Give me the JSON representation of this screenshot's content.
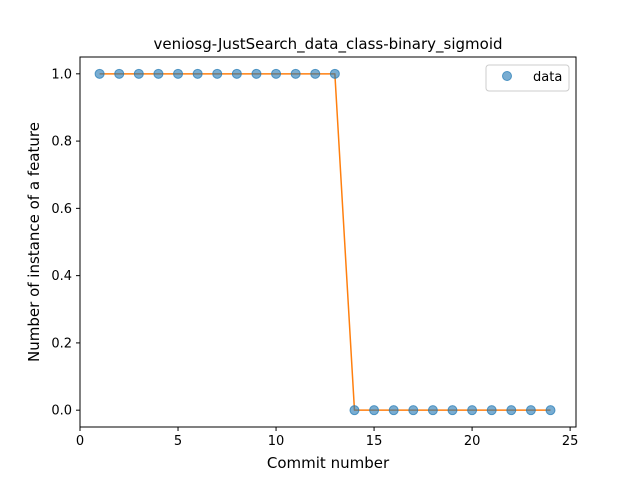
{
  "chart_data": {
    "type": "scatter",
    "title": "veniosg-JustSearch_data_class-binary_sigmoid",
    "xlabel": "Commit number",
    "ylabel": "Number of instance of a feature",
    "xlim": [
      0.0,
      25.3
    ],
    "ylim": [
      -0.05,
      1.05
    ],
    "xticks": [
      0,
      5,
      10,
      15,
      20,
      25
    ],
    "yticks": [
      0.0,
      0.2,
      0.4,
      0.6,
      0.8,
      1.0
    ],
    "xtick_labels": [
      "0",
      "5",
      "10",
      "15",
      "20",
      "25"
    ],
    "ytick_labels": [
      "0.0",
      "0.2",
      "0.4",
      "0.6",
      "0.8",
      "1.0"
    ],
    "grid": false,
    "legend_position": "top-right",
    "series": [
      {
        "name": "data",
        "kind": "scatter",
        "color": "#1f77b4",
        "x": [
          1,
          2,
          3,
          4,
          5,
          6,
          7,
          8,
          9,
          10,
          11,
          12,
          13,
          14,
          15,
          16,
          17,
          18,
          19,
          20,
          21,
          22,
          23,
          24
        ],
        "y": [
          1,
          1,
          1,
          1,
          1,
          1,
          1,
          1,
          1,
          1,
          1,
          1,
          1,
          0,
          0,
          0,
          0,
          0,
          0,
          0,
          0,
          0,
          0,
          0
        ]
      },
      {
        "kind": "line",
        "color": "#ff7f0e",
        "x": [
          1,
          2,
          3,
          4,
          5,
          6,
          7,
          8,
          9,
          10,
          11,
          12,
          13,
          14,
          15,
          16,
          17,
          18,
          19,
          20,
          21,
          22,
          23,
          24
        ],
        "y": [
          1,
          1,
          1,
          1,
          1,
          1,
          1,
          1,
          1,
          1,
          1,
          1,
          1,
          0,
          0,
          0,
          0,
          0,
          0,
          0,
          0,
          0,
          0,
          0
        ]
      }
    ]
  }
}
